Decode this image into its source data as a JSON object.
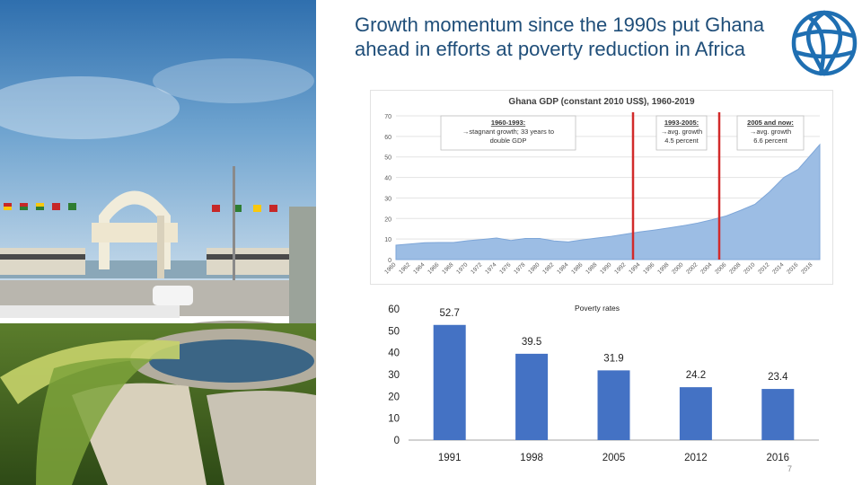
{
  "slide": {
    "title": "Growth momentum since the 1990s put Ghana ahead in efforts at poverty reduction in Africa",
    "page_number": "7"
  },
  "photo": {
    "icon": "independence-square-photo"
  },
  "logo": {
    "icon": "world-bank-globe-icon",
    "color": "#1f6fb2"
  },
  "chart_data": [
    {
      "type": "area",
      "title": "Ghana GDP (constant 2010 US$), 1960-2019",
      "ylim": [
        0,
        70
      ],
      "yticks": [
        0,
        10,
        20,
        30,
        40,
        50,
        60,
        70
      ],
      "x": [
        1960,
        1962,
        1964,
        1966,
        1968,
        1970,
        1972,
        1974,
        1976,
        1978,
        1980,
        1982,
        1984,
        1986,
        1988,
        1990,
        1992,
        1994,
        1996,
        1998,
        2000,
        2002,
        2004,
        2006,
        2008,
        2010,
        2012,
        2014,
        2016,
        2018,
        2019
      ],
      "xticks": [
        1960,
        1962,
        1964,
        1966,
        1968,
        1970,
        1972,
        1974,
        1976,
        1978,
        1980,
        1982,
        1984,
        1986,
        1988,
        1990,
        1992,
        1994,
        1996,
        1998,
        2000,
        2002,
        2004,
        2006,
        2008,
        2010,
        2012,
        2014,
        2016,
        2018
      ],
      "values": [
        7,
        7.6,
        8.2,
        8.3,
        8.3,
        9.2,
        9.8,
        10.5,
        9.3,
        10.3,
        10.3,
        9.1,
        8.6,
        9.6,
        10.5,
        11.3,
        12.4,
        13.5,
        14.4,
        15.4,
        16.5,
        17.8,
        19.4,
        21.3,
        24.0,
        27.0,
        33.0,
        40.0,
        44.0,
        52.0,
        56.0
      ],
      "series": [
        {
          "values": [
            7,
            7.6,
            8.2,
            8.3,
            8.3,
            9.2,
            9.8,
            10.5,
            9.3,
            10.3,
            10.3,
            9.1,
            8.6,
            9.6,
            10.5,
            11.3,
            12.4,
            13.5,
            14.4,
            15.4,
            16.5,
            17.8,
            19.4,
            21.3,
            24.0,
            27.0,
            33.0,
            40.0,
            44.0,
            52.0,
            56.0
          ],
          "color": "#9cbde4"
        }
      ],
      "markers": [
        1993,
        2005
      ],
      "marker_color": "#d22b2b",
      "annotations": [
        {
          "lines": [
            "1960-1993:",
            "→stagnant growth; 33 years to",
            "double GDP"
          ]
        },
        {
          "lines": [
            "1993-2005:",
            "→avg. growth",
            "4.5 percent"
          ]
        },
        {
          "lines": [
            "2005 and now:",
            "→avg. growth",
            "6.6 percent"
          ]
        }
      ],
      "grid": true
    },
    {
      "type": "bar",
      "title": "Poverty rates",
      "categories": [
        "1991",
        "1998",
        "2005",
        "2012",
        "2016"
      ],
      "values": [
        52.7,
        39.5,
        31.9,
        24.2,
        23.4
      ],
      "value_labels": [
        "52.7",
        "39.5",
        "31.9",
        "24.2",
        "23.4"
      ],
      "ylim": [
        0,
        60
      ],
      "yticks": [
        "0",
        "10",
        "20",
        "30",
        "40",
        "50",
        "60"
      ],
      "color": "#4472c4"
    }
  ]
}
